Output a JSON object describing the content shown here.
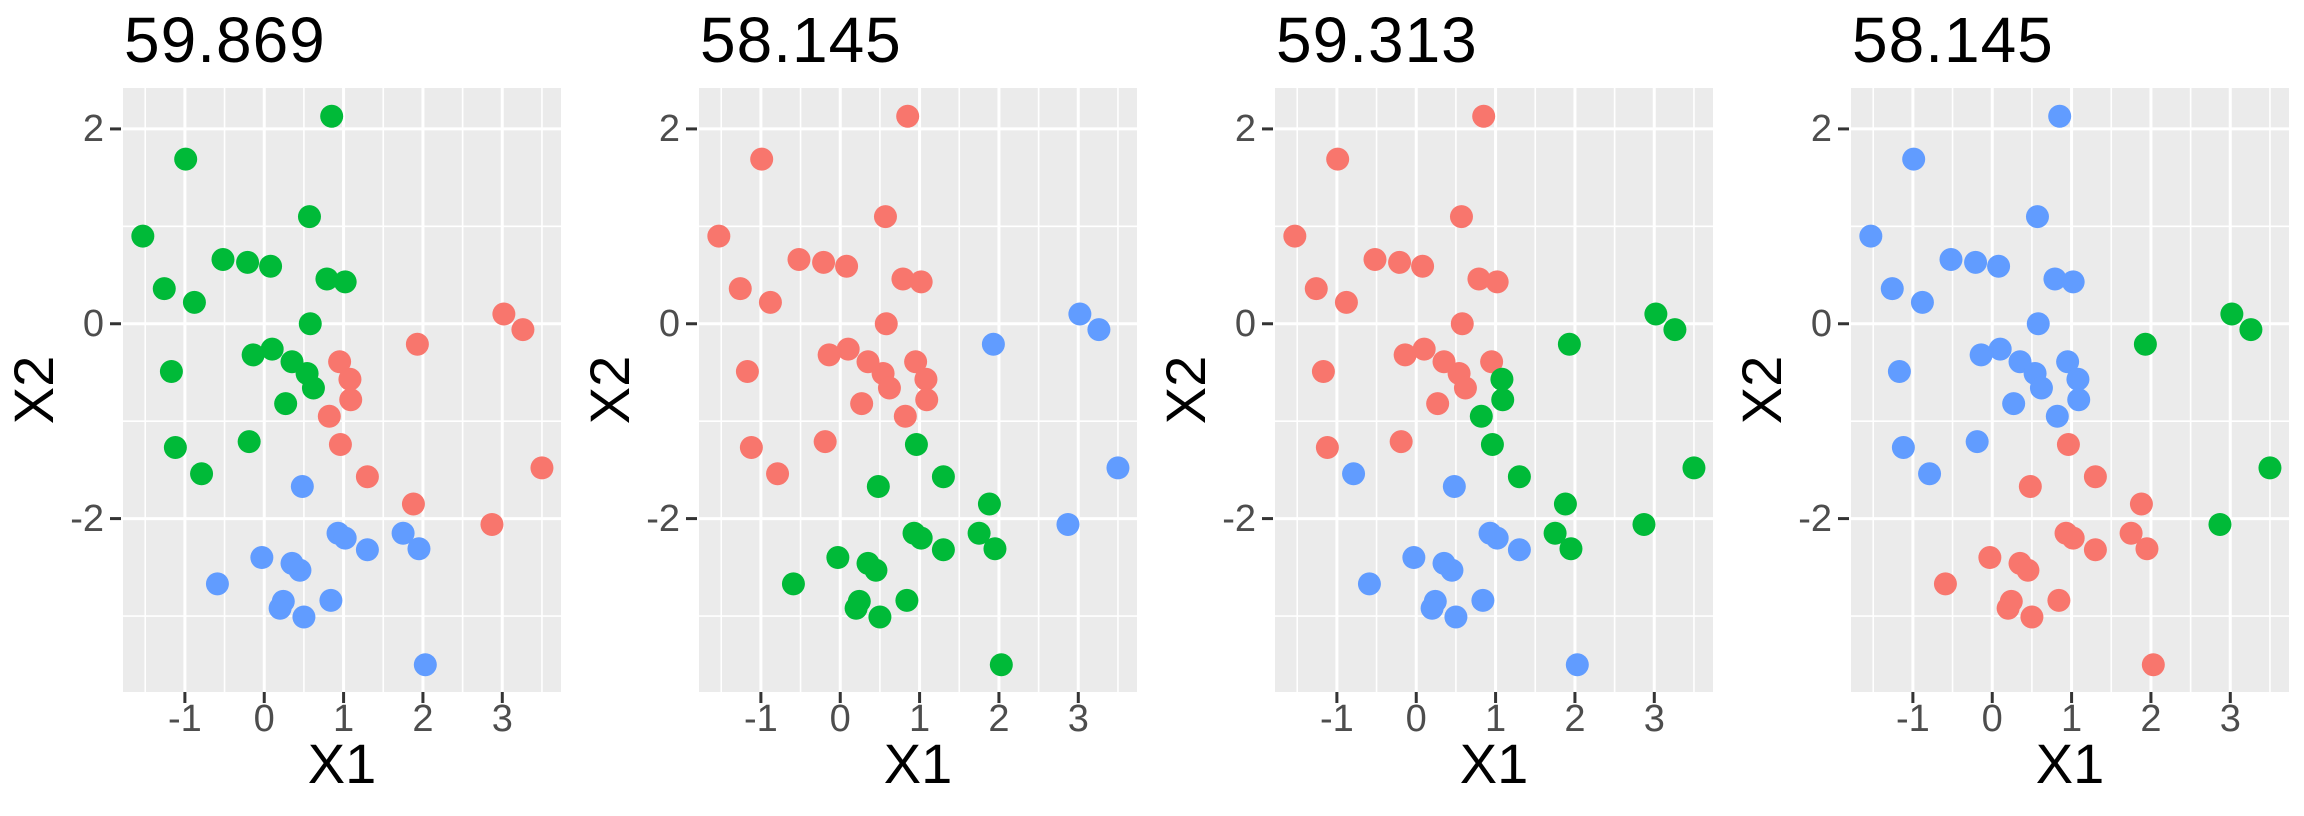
{
  "chart_data": {
    "type": "scatter",
    "subplot_layout": "1x4",
    "xlabel": "X1",
    "ylabel": "X2",
    "x_ticks": [
      -1,
      0,
      1,
      2,
      3
    ],
    "y_ticks": [
      2,
      0,
      -2
    ],
    "x_tick_labels": [
      "-1",
      "0",
      "1",
      "2",
      "3"
    ],
    "y_tick_labels": [
      "2",
      "0",
      "-2"
    ],
    "xlim": [
      -1.78,
      3.74
    ],
    "ylim": [
      -3.78,
      2.42
    ],
    "x_grid_major": [
      -1,
      0,
      1,
      2,
      3
    ],
    "x_grid_minor": [
      -1.5,
      -0.5,
      0.5,
      1.5,
      2.5,
      3.5
    ],
    "y_grid_major": [
      2,
      0,
      -2
    ],
    "y_grid_minor": [
      1,
      -1,
      -3
    ],
    "grid": "white major+minor gridlines on grey panel",
    "legend": "none",
    "palette": {
      "r": "#F8766D",
      "g": "#00BA38",
      "b": "#619CFF"
    },
    "panel_bg": "#EBEBEB",
    "gridline_color": "#FFFFFF",
    "tick_mark_color": "#333333",
    "tick_text_color": "#4d4d4d",
    "title_color": "#000000",
    "points": [
      [
        0.85,
        2.13
      ],
      [
        -0.99,
        1.69
      ],
      [
        0.57,
        1.1
      ],
      [
        -1.53,
        0.9
      ],
      [
        -0.52,
        0.66
      ],
      [
        -0.21,
        0.63
      ],
      [
        0.08,
        0.59
      ],
      [
        0.79,
        0.46
      ],
      [
        1.02,
        0.43
      ],
      [
        -1.26,
        0.36
      ],
      [
        -0.88,
        0.22
      ],
      [
        0.58,
        0.0
      ],
      [
        -0.14,
        -0.32
      ],
      [
        0.1,
        -0.26
      ],
      [
        0.35,
        -0.39
      ],
      [
        0.54,
        -0.51
      ],
      [
        -1.17,
        -0.49
      ],
      [
        0.62,
        -0.66
      ],
      [
        0.27,
        -0.82
      ],
      [
        -0.19,
        -1.21
      ],
      [
        -1.12,
        -1.27
      ],
      [
        -0.79,
        -1.54
      ],
      [
        0.95,
        -0.39
      ],
      [
        1.08,
        -0.57
      ],
      [
        1.09,
        -0.78
      ],
      [
        0.82,
        -0.95
      ],
      [
        0.96,
        -1.24
      ],
      [
        1.3,
        -1.57
      ],
      [
        1.88,
        -1.85
      ],
      [
        1.93,
        -0.21
      ],
      [
        3.02,
        0.1
      ],
      [
        3.26,
        -0.06
      ],
      [
        3.5,
        -1.48
      ],
      [
        2.87,
        -2.06
      ],
      [
        0.48,
        -1.67
      ],
      [
        0.93,
        -2.15
      ],
      [
        1.02,
        -2.2
      ],
      [
        1.3,
        -2.32
      ],
      [
        1.75,
        -2.15
      ],
      [
        1.95,
        -2.31
      ],
      [
        -0.03,
        -2.4
      ],
      [
        0.35,
        -2.46
      ],
      [
        0.45,
        -2.53
      ],
      [
        -0.59,
        -2.67
      ],
      [
        0.24,
        -2.85
      ],
      [
        0.2,
        -2.92
      ],
      [
        0.84,
        -2.84
      ],
      [
        0.5,
        -3.01
      ],
      [
        2.03,
        -3.5
      ]
    ],
    "subplots": [
      {
        "title": "59.869",
        "clusters": "ggggggggggggggggggggggrrrrrrrrrrrrbbbbbbbbbbbbbbb"
      },
      {
        "title": "58.145",
        "clusters": "rrrrrrrrrrrrrrrrrrrrrrrrrrgggbbbbbggggggggggggggg"
      },
      {
        "title": "59.313",
        "clusters": "rrrrrrrrrrrrrrrrrrrrrbrgggggggggggbbbbggbbbbbbbbb"
      },
      {
        "title": "58.145",
        "clusters": "bbbbbbbbbbbbbbbbbbbbbbbbbbrrrgggggrrrrrrrrrrrrrrr"
      }
    ]
  }
}
